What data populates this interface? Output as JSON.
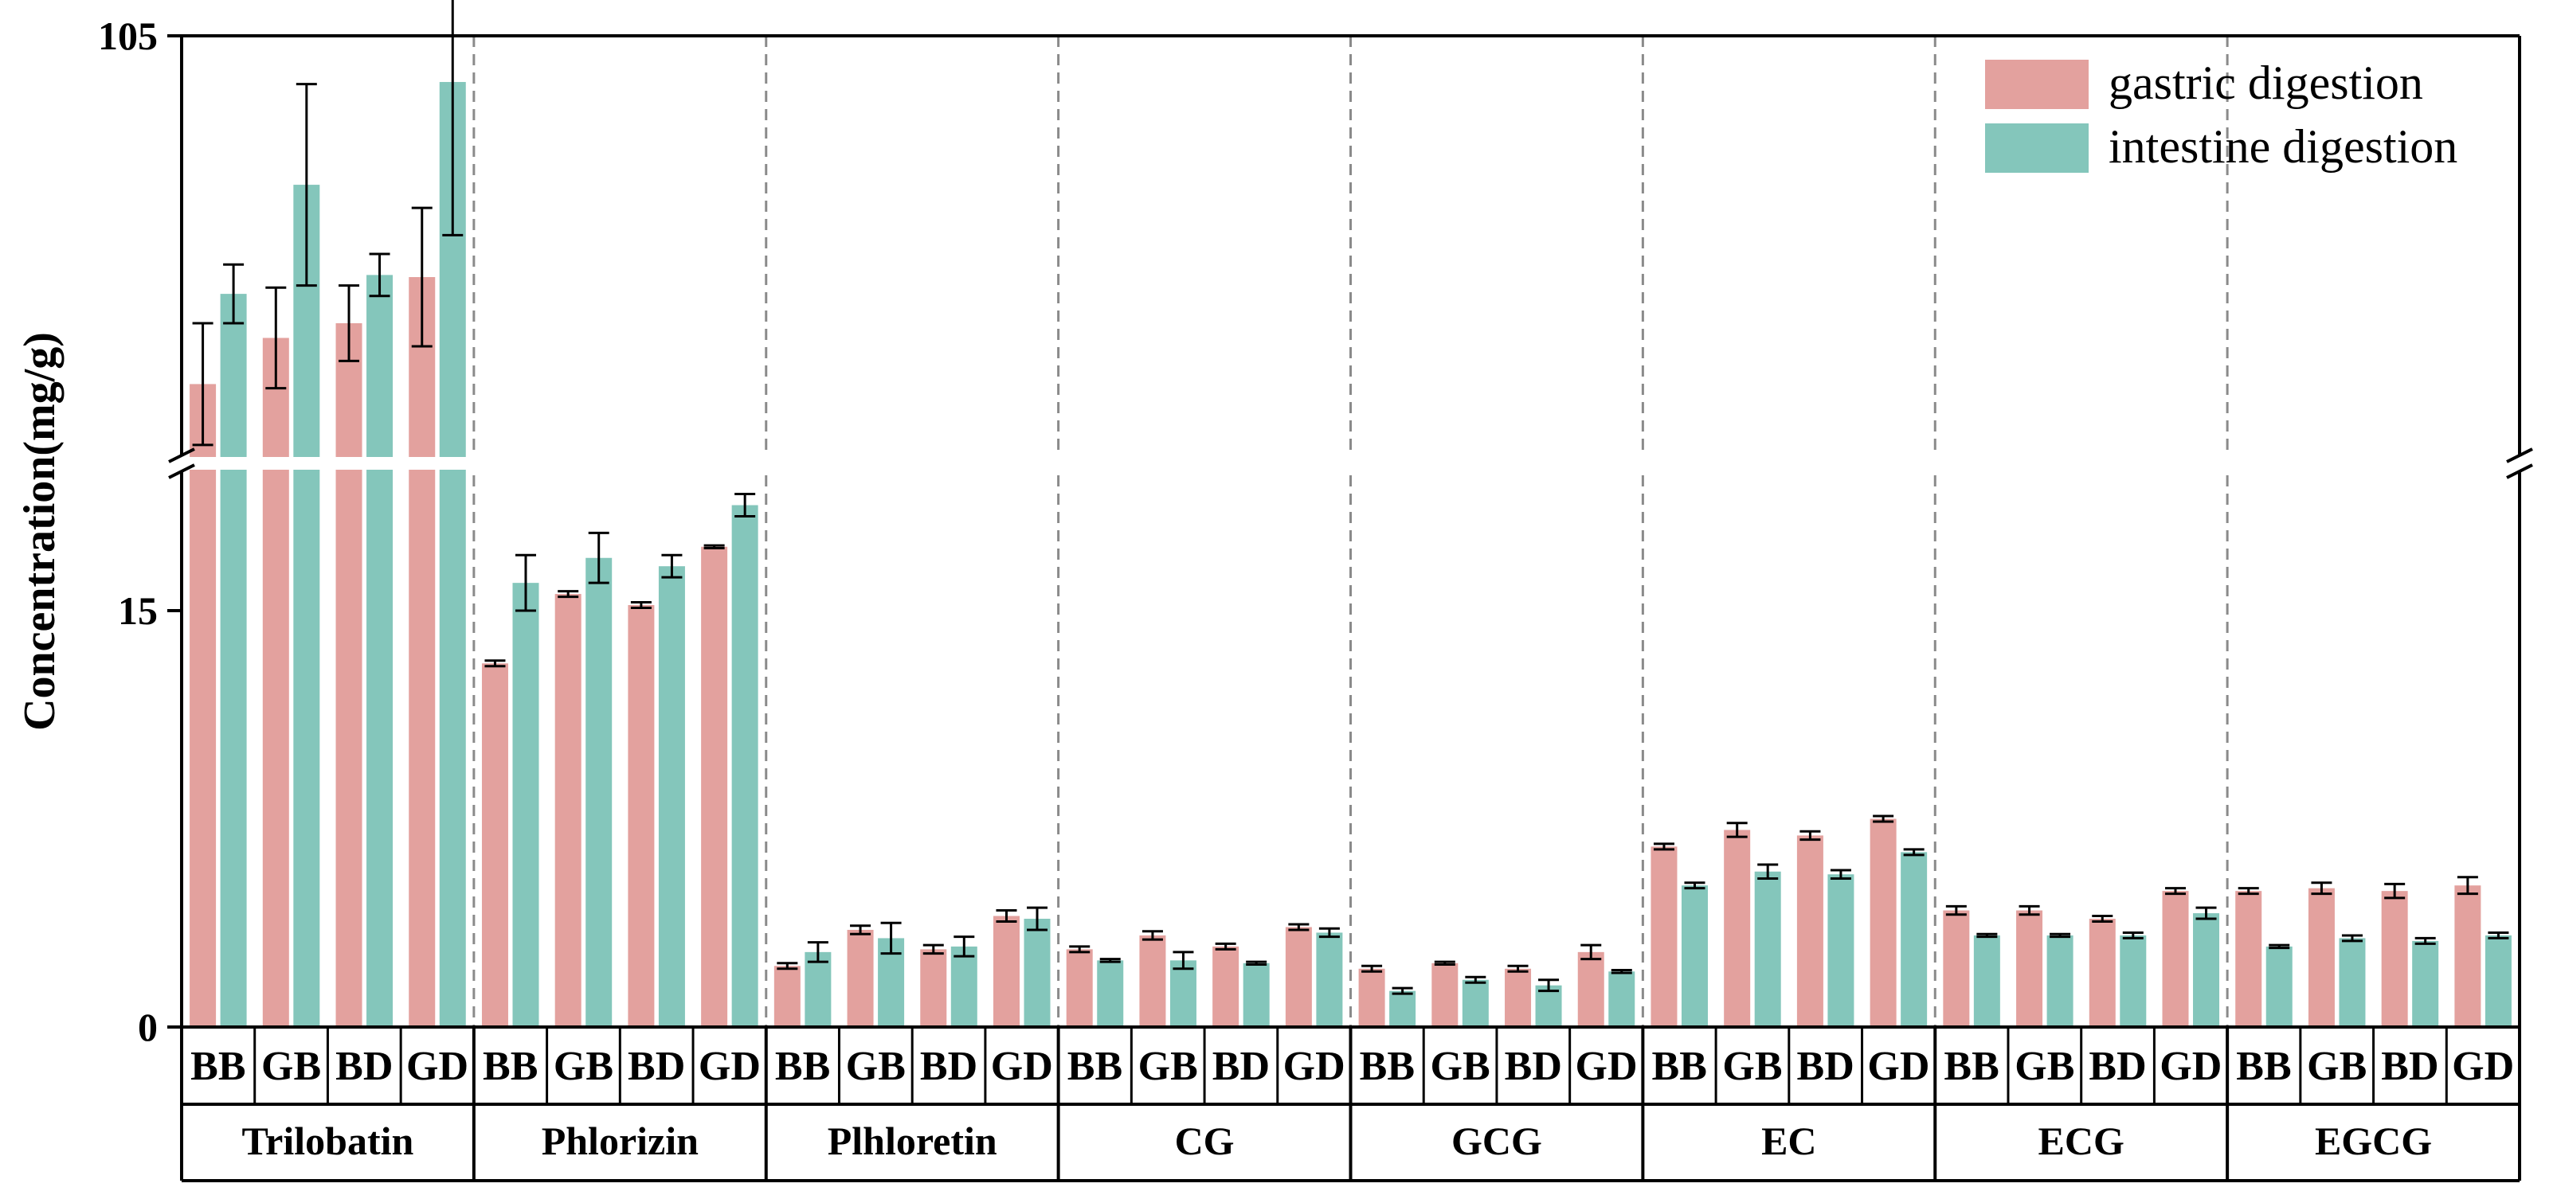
{
  "chart_data": {
    "type": "bar",
    "ylabel": "Concentration(mg/g)",
    "y_ticks": [
      "105",
      "15",
      "0"
    ],
    "y_axis_break": [
      20,
      85
    ],
    "ylim": [
      0,
      105
    ],
    "legend_position": "top-right",
    "legend": [
      "gastric digestion",
      "intestine digestion"
    ],
    "colors": {
      "gastric": "#E3A19E",
      "intestine": "#84C6BB"
    },
    "categories": [
      "BB",
      "GB",
      "BD",
      "GD"
    ],
    "groups": [
      {
        "name": "Trilobatin",
        "gastric": [
          {
            "value": 88.4,
            "err": 2.9
          },
          {
            "value": 90.6,
            "err": 2.4
          },
          {
            "value": 91.3,
            "err": 1.8
          },
          {
            "value": 93.5,
            "err": 3.3
          }
        ],
        "intestine": [
          {
            "value": 92.7,
            "err": 1.4
          },
          {
            "value": 97.9,
            "err": 4.8
          },
          {
            "value": 93.6,
            "err": 1.0
          },
          {
            "value": 102.8,
            "err": 7.3
          }
        ]
      },
      {
        "name": "Phlorizin",
        "gastric": [
          {
            "value": 13.1,
            "err": 0.1
          },
          {
            "value": 15.6,
            "err": 0.1
          },
          {
            "value": 15.2,
            "err": 0.1
          },
          {
            "value": 17.3,
            "err": 0.05
          }
        ],
        "intestine": [
          {
            "value": 16.0,
            "err": 1.0
          },
          {
            "value": 16.9,
            "err": 0.9
          },
          {
            "value": 16.6,
            "err": 0.4
          },
          {
            "value": 18.8,
            "err": 0.4
          }
        ]
      },
      {
        "name": "Plhloretin",
        "gastric": [
          {
            "value": 2.2,
            "err": 0.1
          },
          {
            "value": 3.5,
            "err": 0.15
          },
          {
            "value": 2.8,
            "err": 0.15
          },
          {
            "value": 4.0,
            "err": 0.2
          }
        ],
        "intestine": [
          {
            "value": 2.7,
            "err": 0.35
          },
          {
            "value": 3.2,
            "err": 0.55
          },
          {
            "value": 2.9,
            "err": 0.35
          },
          {
            "value": 3.9,
            "err": 0.4
          }
        ]
      },
      {
        "name": "CG",
        "gastric": [
          {
            "value": 2.8,
            "err": 0.1
          },
          {
            "value": 3.3,
            "err": 0.15
          },
          {
            "value": 2.9,
            "err": 0.1
          },
          {
            "value": 3.6,
            "err": 0.1
          }
        ],
        "intestine": [
          {
            "value": 2.4,
            "err": 0.05
          },
          {
            "value": 2.4,
            "err": 0.3
          },
          {
            "value": 2.3,
            "err": 0.05
          },
          {
            "value": 3.4,
            "err": 0.15
          }
        ]
      },
      {
        "name": "GCG",
        "gastric": [
          {
            "value": 2.1,
            "err": 0.1
          },
          {
            "value": 2.3,
            "err": 0.05
          },
          {
            "value": 2.1,
            "err": 0.1
          },
          {
            "value": 2.7,
            "err": 0.25
          }
        ],
        "intestine": [
          {
            "value": 1.3,
            "err": 0.1
          },
          {
            "value": 1.7,
            "err": 0.1
          },
          {
            "value": 1.5,
            "err": 0.2
          },
          {
            "value": 2.0,
            "err": 0.05
          }
        ]
      },
      {
        "name": "EC",
        "gastric": [
          {
            "value": 6.5,
            "err": 0.1
          },
          {
            "value": 7.1,
            "err": 0.25
          },
          {
            "value": 6.9,
            "err": 0.15
          },
          {
            "value": 7.5,
            "err": 0.1
          }
        ],
        "intestine": [
          {
            "value": 5.1,
            "err": 0.1
          },
          {
            "value": 5.6,
            "err": 0.25
          },
          {
            "value": 5.5,
            "err": 0.15
          },
          {
            "value": 6.3,
            "err": 0.1
          }
        ]
      },
      {
        "name": "ECG",
        "gastric": [
          {
            "value": 4.2,
            "err": 0.15
          },
          {
            "value": 4.2,
            "err": 0.15
          },
          {
            "value": 3.9,
            "err": 0.1
          },
          {
            "value": 4.9,
            "err": 0.1
          }
        ],
        "intestine": [
          {
            "value": 3.3,
            "err": 0.05
          },
          {
            "value": 3.3,
            "err": 0.05
          },
          {
            "value": 3.3,
            "err": 0.1
          },
          {
            "value": 4.1,
            "err": 0.2
          }
        ]
      },
      {
        "name": "EGCG",
        "gastric": [
          {
            "value": 4.9,
            "err": 0.1
          },
          {
            "value": 5.0,
            "err": 0.2
          },
          {
            "value": 4.9,
            "err": 0.25
          },
          {
            "value": 5.1,
            "err": 0.3
          }
        ],
        "intestine": [
          {
            "value": 2.9,
            "err": 0.05
          },
          {
            "value": 3.2,
            "err": 0.1
          },
          {
            "value": 3.1,
            "err": 0.1
          },
          {
            "value": 3.3,
            "err": 0.1
          }
        ]
      }
    ]
  }
}
